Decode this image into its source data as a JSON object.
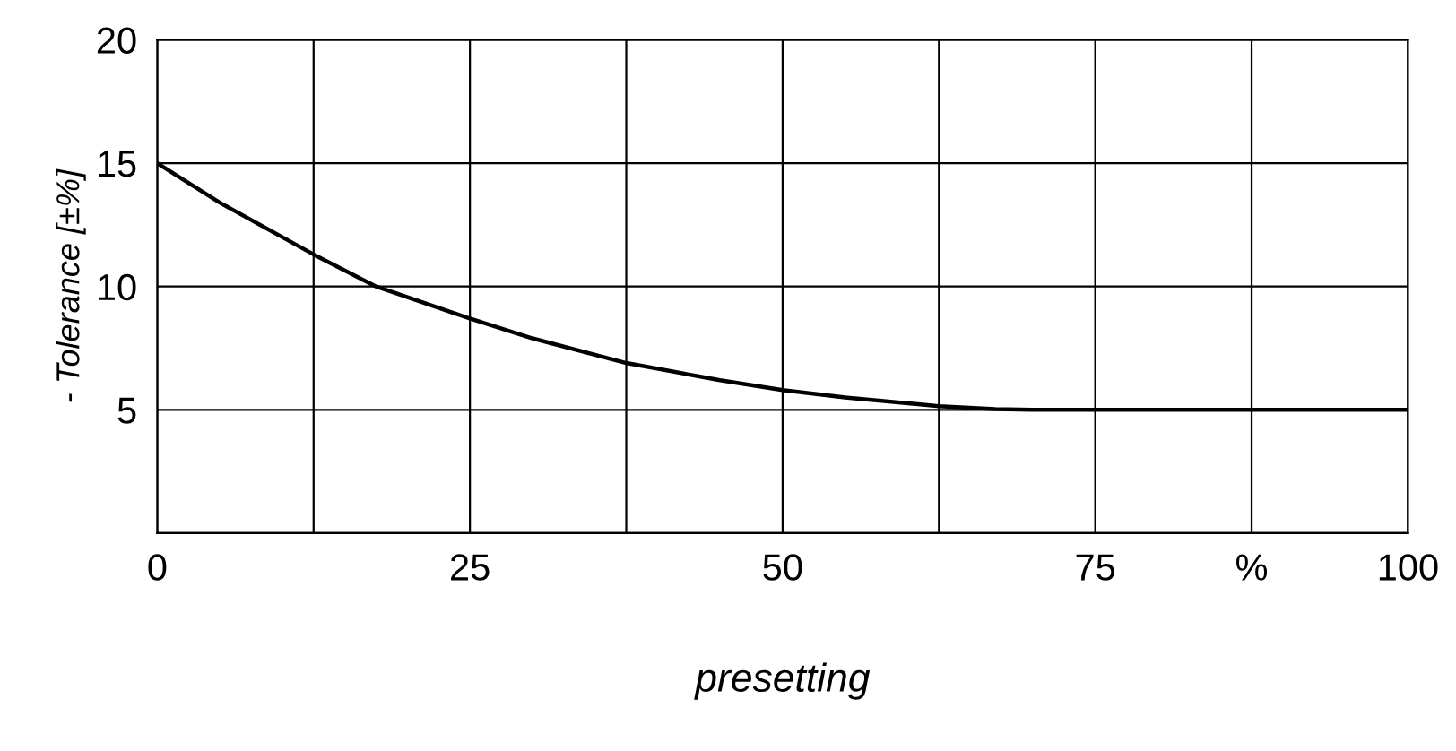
{
  "chart_data": {
    "type": "line",
    "xlabel": "presetting",
    "ylabel": "- Tolerance [±%]",
    "x": [
      0,
      5,
      10,
      12.5,
      17.5,
      25,
      30,
      37.5,
      45,
      50,
      55,
      62.5,
      67,
      70,
      75,
      87.5,
      100
    ],
    "series": [
      {
        "color": "#000000",
        "values": [
          15,
          13.4,
          12.0,
          11.3,
          10.0,
          8.7,
          7.9,
          6.9,
          6.2,
          5.8,
          5.5,
          5.15,
          5.03,
          5.0,
          5.0,
          5.0,
          5.0
        ]
      }
    ],
    "xlim": [
      0,
      100
    ],
    "ylim": [
      0,
      20
    ],
    "xticks": [
      0,
      {
        "value": 12.5,
        "label": null
      },
      25,
      {
        "value": 37.5,
        "label": null
      },
      50,
      {
        "value": 62.5,
        "label": null
      },
      75,
      {
        "value": 87.5,
        "label": "%"
      },
      100
    ],
    "yticks": [
      {
        "value": 0,
        "label": null
      },
      5,
      10,
      15,
      20
    ],
    "grid": true,
    "marker": "none",
    "line_style": "solid"
  }
}
